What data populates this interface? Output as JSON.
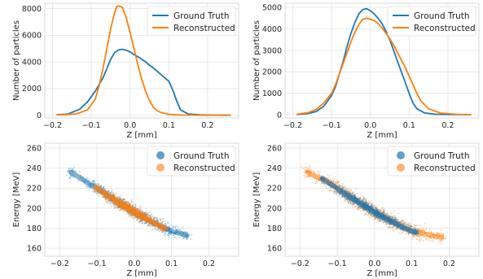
{
  "chart_data": [
    {
      "type": "line",
      "xlabel": "Z [mm]",
      "ylabel": "Number of particles",
      "xlim": [
        -0.22,
        0.28
      ],
      "ylim": [
        -200,
        8400
      ],
      "xticks": [
        -0.2,
        -0.1,
        0.0,
        0.1,
        0.2
      ],
      "xtick_labels": [
        "−0.2",
        "−0.1",
        "0.0",
        "0.1",
        "0.2"
      ],
      "yticks": [
        0,
        2000,
        4000,
        6000,
        8000
      ],
      "ytick_labels": [
        "0",
        "2000",
        "4000",
        "6000",
        "8000"
      ],
      "grid": true,
      "legend_position": "top-right",
      "series": [
        {
          "name": "Ground Truth",
          "color": "#1f77b4",
          "x": [
            -0.19,
            -0.16,
            -0.13,
            -0.11,
            -0.09,
            -0.07,
            -0.06,
            -0.05,
            -0.04,
            -0.03,
            -0.02,
            -0.01,
            0.0,
            0.01,
            0.02,
            0.03,
            0.04,
            0.05,
            0.06,
            0.07,
            0.08,
            0.09,
            0.1,
            0.11,
            0.12,
            0.13,
            0.15,
            0.18,
            0.22,
            0.26
          ],
          "y": [
            30,
            100,
            450,
            1000,
            1800,
            2800,
            3500,
            4200,
            4700,
            4900,
            4950,
            4880,
            4750,
            4550,
            4400,
            4200,
            4000,
            3750,
            3550,
            3300,
            3050,
            2800,
            2550,
            1900,
            1100,
            400,
            100,
            30,
            10,
            0
          ]
        },
        {
          "name": "Reconstructed",
          "color": "#ff7f0e",
          "x": [
            -0.19,
            -0.14,
            -0.11,
            -0.09,
            -0.08,
            -0.07,
            -0.06,
            -0.05,
            -0.04,
            -0.035,
            -0.03,
            -0.02,
            -0.01,
            0.0,
            0.01,
            0.02,
            0.03,
            0.04,
            0.05,
            0.06,
            0.07,
            0.08,
            0.1,
            0.13,
            0.18,
            0.26
          ],
          "y": [
            20,
            100,
            400,
            1200,
            2200,
            3500,
            5000,
            6500,
            7700,
            8150,
            8200,
            8100,
            7300,
            6200,
            5000,
            3800,
            2700,
            1800,
            1100,
            600,
            350,
            200,
            60,
            20,
            10,
            0
          ]
        }
      ]
    },
    {
      "type": "line",
      "xlabel": "Z [mm]",
      "ylabel": "Number of particles",
      "xlim": [
        -0.22,
        0.28
      ],
      "ylim": [
        -150,
        5200
      ],
      "xticks": [
        -0.2,
        -0.1,
        0.0,
        0.1,
        0.2
      ],
      "xtick_labels": [
        "−0.2",
        "−0.1",
        "0.0",
        "0.1",
        "0.2"
      ],
      "yticks": [
        0,
        1000,
        2000,
        3000,
        4000,
        5000
      ],
      "ytick_labels": [
        "0",
        "1000",
        "2000",
        "3000",
        "4000",
        "5000"
      ],
      "grid": true,
      "legend_position": "top-right",
      "series": [
        {
          "name": "Ground Truth",
          "color": "#1f77b4",
          "x": [
            -0.19,
            -0.16,
            -0.14,
            -0.12,
            -0.1,
            -0.09,
            -0.08,
            -0.07,
            -0.06,
            -0.05,
            -0.04,
            -0.03,
            -0.02,
            -0.01,
            0.0,
            0.01,
            0.02,
            0.03,
            0.04,
            0.05,
            0.06,
            0.07,
            0.08,
            0.09,
            0.1,
            0.11,
            0.12,
            0.14,
            0.17,
            0.22,
            0.26
          ],
          "y": [
            10,
            60,
            150,
            400,
            900,
            1300,
            1900,
            2500,
            3200,
            3800,
            4300,
            4700,
            4900,
            4950,
            4850,
            4700,
            4500,
            4250,
            3900,
            3500,
            3000,
            2500,
            2000,
            1500,
            1000,
            550,
            280,
            80,
            20,
            5,
            0
          ]
        },
        {
          "name": "Reconstructed",
          "color": "#ff7f0e",
          "x": [
            -0.19,
            -0.16,
            -0.14,
            -0.12,
            -0.1,
            -0.09,
            -0.08,
            -0.07,
            -0.06,
            -0.05,
            -0.04,
            -0.03,
            -0.02,
            -0.01,
            0.0,
            0.01,
            0.02,
            0.03,
            0.04,
            0.05,
            0.06,
            0.07,
            0.08,
            0.09,
            0.1,
            0.11,
            0.12,
            0.13,
            0.15,
            0.18,
            0.22,
            0.26
          ],
          "y": [
            20,
            100,
            250,
            550,
            1000,
            1400,
            1900,
            2400,
            2900,
            3400,
            3850,
            4200,
            4450,
            4500,
            4450,
            4400,
            4250,
            4050,
            3800,
            3550,
            3250,
            2900,
            2550,
            2200,
            1800,
            1400,
            1000,
            650,
            280,
            80,
            20,
            0
          ]
        }
      ]
    },
    {
      "type": "scatter",
      "xlabel": "Z [mm]",
      "ylabel": "Energy [MeV]",
      "xlim": [
        -0.24,
        0.28
      ],
      "ylim": [
        152,
        265
      ],
      "xticks": [
        -0.2,
        -0.1,
        0.0,
        0.1,
        0.2
      ],
      "xtick_labels": [
        "−0.2",
        "−0.1",
        "0.0",
        "0.1",
        "0.2"
      ],
      "yticks": [
        160,
        180,
        200,
        220,
        240,
        260
      ],
      "ytick_labels": [
        "160",
        "180",
        "200",
        "220",
        "240",
        "260"
      ],
      "grid": true,
      "legend_position": "top-right",
      "series": [
        {
          "name": "Ground Truth",
          "color": "#1f77b4",
          "x": [
            -0.17,
            -0.14,
            -0.12,
            -0.11,
            -0.1,
            -0.09,
            -0.08,
            -0.07,
            -0.06,
            -0.05,
            -0.04,
            -0.03,
            -0.02,
            -0.01,
            0.0,
            0.01,
            0.02,
            0.03,
            0.04,
            0.05,
            0.06,
            0.07,
            0.08,
            0.09,
            0.1,
            0.11,
            0.12,
            0.14
          ],
          "y": [
            236,
            229,
            224,
            222,
            220,
            217,
            215,
            212,
            210,
            208,
            205,
            203,
            201,
            199,
            196,
            194,
            192,
            190,
            188,
            186,
            184,
            182,
            180,
            179,
            177,
            176,
            175,
            173
          ]
        },
        {
          "name": "Reconstructed",
          "color": "#ff7f0e",
          "x": [
            -0.1,
            -0.09,
            -0.08,
            -0.07,
            -0.06,
            -0.05,
            -0.04,
            -0.03,
            -0.02,
            -0.01,
            0.0,
            0.01,
            0.02,
            0.03,
            0.04,
            0.05,
            0.06,
            0.07,
            0.08
          ],
          "y": [
            220,
            217,
            215,
            212,
            210,
            208,
            205,
            203,
            201,
            199,
            196,
            194,
            192,
            190,
            188,
            186,
            184,
            182,
            180
          ]
        }
      ]
    },
    {
      "type": "scatter",
      "xlabel": "Z [mm]",
      "ylabel": "Energy [MeV]",
      "xlim": [
        -0.24,
        0.28
      ],
      "ylim": [
        152,
        265
      ],
      "xticks": [
        -0.2,
        -0.1,
        0.0,
        0.1,
        0.2
      ],
      "xtick_labels": [
        "−0.2",
        "−0.1",
        "0.0",
        "0.1",
        "0.2"
      ],
      "yticks": [
        160,
        180,
        200,
        220,
        240,
        260
      ],
      "ytick_labels": [
        "160",
        "180",
        "200",
        "220",
        "240",
        "260"
      ],
      "grid": true,
      "legend_position": "top-right",
      "series": [
        {
          "name": "Ground Truth",
          "color": "#1f77b4",
          "x": [
            -0.14,
            -0.12,
            -0.11,
            -0.1,
            -0.09,
            -0.08,
            -0.07,
            -0.06,
            -0.05,
            -0.04,
            -0.03,
            -0.02,
            -0.01,
            0.0,
            0.01,
            0.02,
            0.03,
            0.04,
            0.05,
            0.06,
            0.07,
            0.08,
            0.09,
            0.1,
            0.11
          ],
          "y": [
            229,
            225,
            222,
            220,
            217,
            215,
            212,
            210,
            208,
            205,
            203,
            201,
            199,
            196,
            194,
            192,
            190,
            188,
            186,
            184,
            182,
            180,
            179,
            177,
            176
          ]
        },
        {
          "name": "Reconstructed",
          "color": "#ff7f0e",
          "x": [
            -0.18,
            -0.16,
            -0.14,
            -0.12,
            -0.1,
            -0.08,
            -0.06,
            -0.04,
            -0.02,
            0.0,
            0.02,
            0.04,
            0.06,
            0.08,
            0.1,
            0.12,
            0.14,
            0.16,
            0.18
          ],
          "y": [
            236,
            232,
            229,
            225,
            220,
            215,
            210,
            205,
            201,
            196,
            192,
            188,
            184,
            180,
            177,
            175,
            174,
            172,
            171
          ]
        }
      ]
    }
  ]
}
